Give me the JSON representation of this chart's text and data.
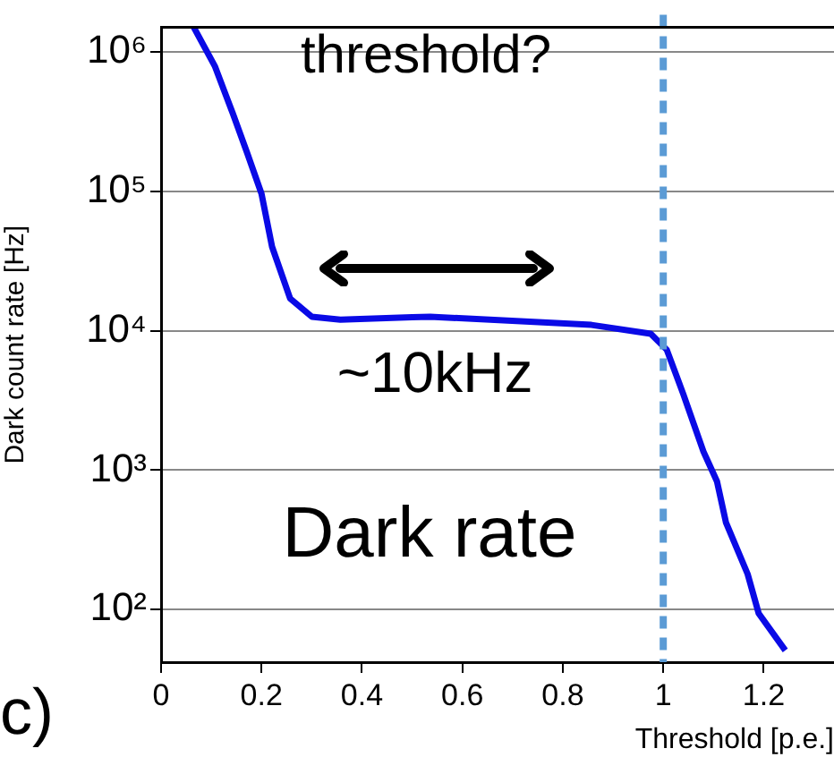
{
  "chart_data": {
    "type": "line",
    "xlabel": "Threshold [p.e.]",
    "ylabel": "Dark count rate [Hz]",
    "series": [
      {
        "color": "#0a0ae6",
        "x": [
          0.065,
          0.107,
          0.143,
          0.171,
          0.2,
          0.221,
          0.257,
          0.3,
          0.357,
          0.5,
          0.536,
          0.857,
          0.975,
          1.007,
          1.04,
          1.08,
          1.107,
          1.125,
          1.168,
          1.19,
          1.243
        ],
        "values": [
          1500000,
          790000,
          360000,
          190000,
          96000,
          40000,
          17000,
          12600,
          12000,
          12500,
          12600,
          11000,
          9500,
          7300,
          3500,
          1360,
          830,
          420,
          180,
          94,
          51
        ]
      }
    ],
    "xlim": [
      0,
      1.34
    ],
    "xticks": [
      0,
      0.2,
      0.4,
      0.6,
      0.8,
      1,
      1.2
    ],
    "log": "y",
    "ylim": [
      42,
      1500000
    ],
    "yticks": [
      {
        "value": 100,
        "label": "10²"
      },
      {
        "value": 1000,
        "label": "10³"
      },
      {
        "value": 10000,
        "label": "10⁴"
      },
      {
        "value": 100000,
        "label": "10⁵"
      },
      {
        "value": 1000000,
        "label": "10⁶"
      }
    ],
    "grid": "y",
    "legend": false,
    "marker": "none",
    "line_style": "solid",
    "ref_lines": [
      {
        "axis": "x",
        "value": 1,
        "color": "#5b9bd5",
        "line_style": "dashed"
      }
    ],
    "annotations": [
      "threshold?",
      "~10kHz",
      "Dark rate",
      "c)"
    ]
  }
}
